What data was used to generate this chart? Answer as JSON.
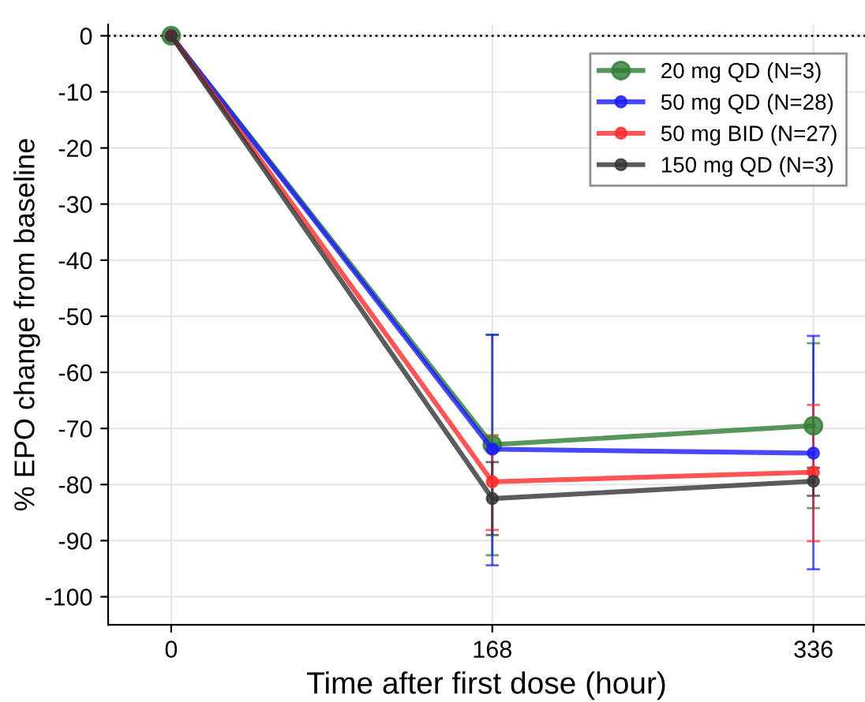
{
  "chart_data": {
    "type": "line",
    "xlabel": "Time after first dose (hour)",
    "ylabel": "% EPO change from baseline",
    "x": [
      0,
      168,
      336
    ],
    "series": [
      {
        "name": "20 mg QD (N=3)",
        "color": "#2e7d32",
        "values": [
          0,
          -72.9,
          -69.5
        ],
        "errors": [
          null,
          [
            -92.6,
            -53.3
          ],
          [
            -84.2,
            -54.8
          ]
        ]
      },
      {
        "name": "50 mg QD (N=28)",
        "color": "#1a1aff",
        "values": [
          0,
          -73.7,
          -74.4
        ],
        "errors": [
          null,
          [
            -94.4,
            -53.3
          ],
          [
            -95.1,
            -53.5
          ]
        ]
      },
      {
        "name": "50 mg BID (N=27)",
        "color": "#ff2a2a",
        "values": [
          0,
          -79.5,
          -77.8
        ],
        "errors": [
          null,
          [
            -88.1,
            -71.2
          ],
          [
            -90.1,
            -65.8
          ]
        ]
      },
      {
        "name": "150 mg QD (N=3)",
        "color": "#333333",
        "values": [
          0,
          -82.5,
          -79.4
        ],
        "errors": [
          null,
          [
            -89,
            -76
          ],
          [
            -82,
            -77
          ]
        ]
      }
    ],
    "xlim": [
      -33,
      363
    ],
    "xticks": [
      0,
      168,
      336
    ],
    "ylim": [
      -105,
      2
    ],
    "yticks": [
      0,
      -10,
      -20,
      -30,
      -40,
      -50,
      -60,
      -70,
      -80,
      -90,
      -100
    ],
    "ref_lines": [
      {
        "axis": "y",
        "value": 0,
        "color": "#000000",
        "line_style": "dotted"
      }
    ],
    "grid": true,
    "legend": "top right",
    "marker": "circle",
    "line_style": "solid"
  }
}
